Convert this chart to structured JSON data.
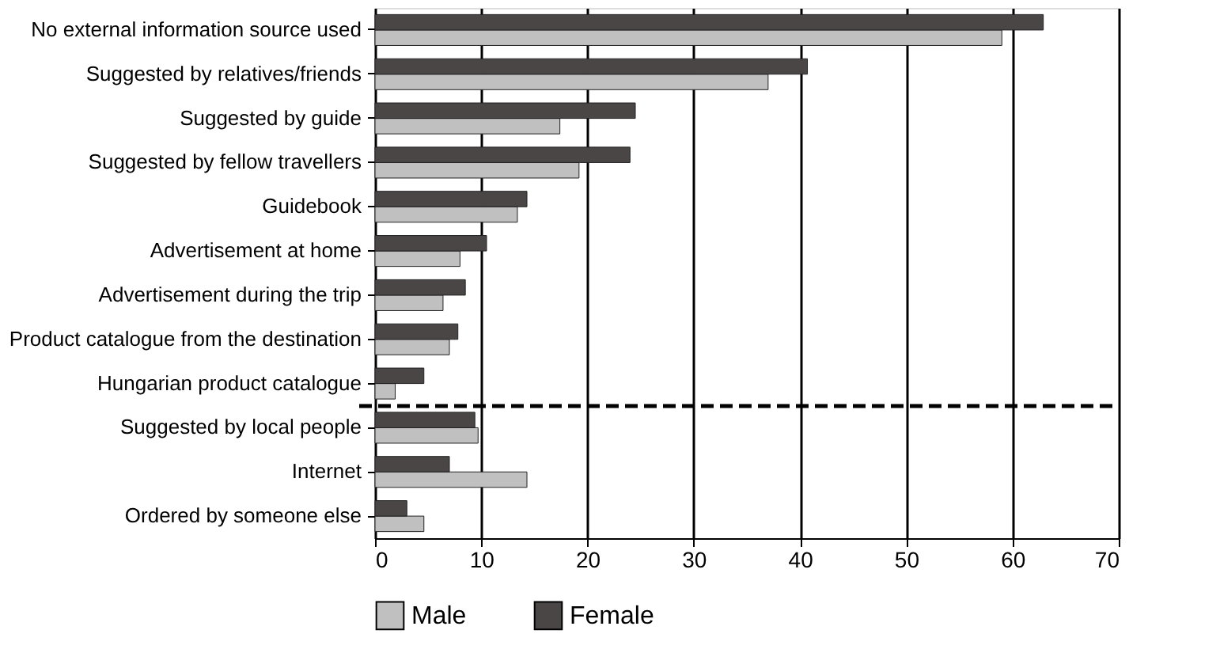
{
  "chart_data": {
    "type": "bar",
    "orientation": "horizontal",
    "categories": [
      "No external information source used",
      "Suggested by relatives/friends",
      "Suggested by guide",
      "Suggested by fellow travellers",
      "Guidebook",
      "Advertisement at home",
      "Advertisement during the trip",
      "Product catalogue from the destination",
      "Hungarian product catalogue",
      "Suggested by local people",
      "Internet",
      "Ordered by someone else"
    ],
    "series": [
      {
        "name": "Male",
        "color": "#c0c0c0",
        "values": [
          59.0,
          37.0,
          17.4,
          19.2,
          13.4,
          8.0,
          6.4,
          7.0,
          1.9,
          9.7,
          14.3,
          4.6
        ]
      },
      {
        "name": "Female",
        "color": "#4a4646",
        "values": [
          62.9,
          40.7,
          24.5,
          24.0,
          14.3,
          10.5,
          8.5,
          7.8,
          4.6,
          9.4,
          7.0,
          3.0
        ]
      }
    ],
    "xlim": [
      0,
      70
    ],
    "xticks": [
      0,
      10,
      20,
      30,
      40,
      50,
      60,
      70
    ],
    "grid": "x",
    "legend": "bottom",
    "ref_lines": [
      {
        "axis": "y",
        "value": "Suggested by local people",
        "color": "#000000",
        "line_style": "dashed"
      }
    ]
  }
}
